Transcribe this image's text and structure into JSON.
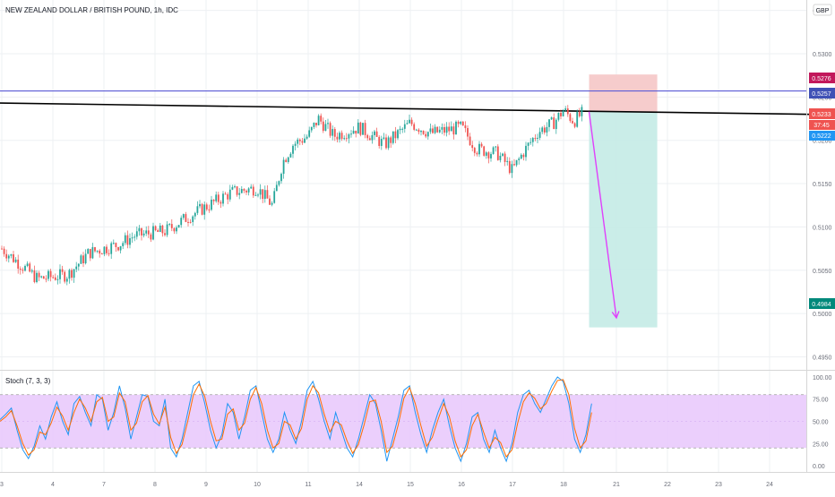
{
  "header": {
    "symbol_title": "NEW ZEALAND DOLLAR / BRITISH POUND, 1h, IDC",
    "currency": "GBP"
  },
  "price_labels": {
    "stop": "0.5276",
    "blue_line": "0.5257",
    "current": "0.5233",
    "countdown": "37:45",
    "last": "0.5222",
    "target": "0.4984"
  },
  "stoch": {
    "title": "Stoch (7, 3, 3)"
  },
  "colors": {
    "up": "#26a69a",
    "down": "#ef5350",
    "resistance": "#000000",
    "blue_line": "#5b5bd6",
    "stop_zone": "#f5c6c6",
    "target_zone": "#c4ebe6",
    "projection_arrow": "#e040fb",
    "stoch_band": "#e7c7fb",
    "stoch_k": "#2196f3",
    "stoch_d": "#ff6d00",
    "stop_label": "#c2185b",
    "blue_label": "#3f51b5",
    "current_label": "#ef5350",
    "last_label": "#2196f3",
    "target_label": "#00897b"
  },
  "chart_data": [
    {
      "type": "candlestick",
      "title": "NEW ZEALAND DOLLAR / BRITISH POUND, 1h, IDC",
      "x_ticks": [
        "3",
        "4",
        "7",
        "8",
        "9",
        "10",
        "11",
        "14",
        "15",
        "16",
        "17",
        "18",
        "21",
        "22",
        "23",
        "24"
      ],
      "y_ticks": [
        "0.5350",
        "0.5300",
        "0.5250",
        "0.5200",
        "0.5150",
        "0.5100",
        "0.5050",
        "0.5000",
        "0.4950"
      ],
      "ylim": [
        0.4935,
        0.5362
      ],
      "price_path": [
        [
          3,
          0.5075
        ],
        [
          3.7,
          0.504
        ],
        [
          4.3,
          0.5045
        ],
        [
          4.7,
          0.507
        ],
        [
          7.3,
          0.508
        ],
        [
          7.6,
          0.509
        ],
        [
          8.2,
          0.5095
        ],
        [
          8.6,
          0.511
        ],
        [
          9.2,
          0.513
        ],
        [
          9.5,
          0.514
        ],
        [
          10,
          0.5145
        ],
        [
          10.3,
          0.5125
        ],
        [
          10.5,
          0.5175
        ],
        [
          10.7,
          0.5195
        ],
        [
          11,
          0.5205
        ],
        [
          11.2,
          0.5225
        ],
        [
          11.5,
          0.5205
        ],
        [
          14,
          0.5215
        ],
        [
          14.5,
          0.5195
        ],
        [
          15,
          0.522
        ],
        [
          15.4,
          0.5208
        ],
        [
          16,
          0.5215
        ],
        [
          16.3,
          0.519
        ],
        [
          16.7,
          0.5185
        ],
        [
          17,
          0.5165
        ],
        [
          17.2,
          0.5185
        ],
        [
          17.5,
          0.521
        ],
        [
          17.8,
          0.522
        ],
        [
          18,
          0.5235
        ],
        [
          18.2,
          0.5222
        ],
        [
          18.4,
          0.5233
        ]
      ],
      "resistance_line": {
        "from": [
          3,
          0.5243
        ],
        "to": [
          24.8,
          0.523
        ]
      },
      "horizontal_line": 0.5257,
      "position": {
        "entry": 0.5233,
        "stop": 0.5276,
        "target": 0.4984,
        "x_from": 18.5,
        "x_to": 21.8
      },
      "projection": {
        "from": [
          18.5,
          0.5233
        ],
        "to": [
          21,
          0.4995
        ]
      },
      "grid": true
    },
    {
      "type": "line",
      "title": "Stoch (7, 3, 3)",
      "y_ticks": [
        "100.00",
        "75.00",
        "50.00",
        "25.00",
        "0.00"
      ],
      "ylim": [
        -7,
        107
      ],
      "band": [
        20,
        80
      ],
      "series": [
        {
          "values": [
            52,
            58,
            65,
            40,
            18,
            8,
            22,
            45,
            30,
            55,
            72,
            50,
            35,
            70,
            78,
            60,
            45,
            80,
            75,
            40,
            60,
            90,
            65,
            30,
            55,
            80,
            78,
            50,
            45,
            75,
            20,
            10,
            30,
            60,
            90,
            95,
            70,
            40,
            20,
            35,
            70,
            60,
            30,
            55,
            85,
            90,
            60,
            30,
            15,
            30,
            60,
            40,
            25,
            50,
            85,
            95,
            75,
            50,
            30,
            60,
            40,
            20,
            10,
            30,
            55,
            80,
            70,
            40,
            5,
            30,
            55,
            85,
            90,
            60,
            35,
            15,
            40,
            60,
            75,
            45,
            20,
            5,
            25,
            55,
            60,
            30,
            15,
            40,
            20,
            5,
            25,
            60,
            80,
            85,
            70,
            60,
            75,
            90,
            100,
            95,
            70,
            30,
            15,
            35,
            70
          ]
        },
        {
          "values": [
            50,
            55,
            62,
            45,
            25,
            12,
            18,
            38,
            35,
            48,
            66,
            56,
            40,
            60,
            75,
            65,
            50,
            72,
            77,
            50,
            55,
            82,
            72,
            40,
            48,
            72,
            79,
            58,
            47,
            66,
            32,
            14,
            24,
            50,
            80,
            92,
            78,
            50,
            28,
            30,
            58,
            64,
            40,
            48,
            75,
            88,
            70,
            40,
            20,
            25,
            50,
            46,
            30,
            42,
            75,
            90,
            82,
            58,
            38,
            50,
            46,
            28,
            14,
            24,
            46,
            72,
            74,
            50,
            15,
            22,
            46,
            76,
            88,
            70,
            45,
            22,
            32,
            52,
            70,
            55,
            28,
            10,
            18,
            45,
            58,
            38,
            20,
            32,
            26,
            10,
            18,
            48,
            72,
            82,
            76,
            64,
            70,
            84,
            96,
            97,
            80,
            42,
            20,
            28,
            60
          ]
        }
      ]
    }
  ]
}
